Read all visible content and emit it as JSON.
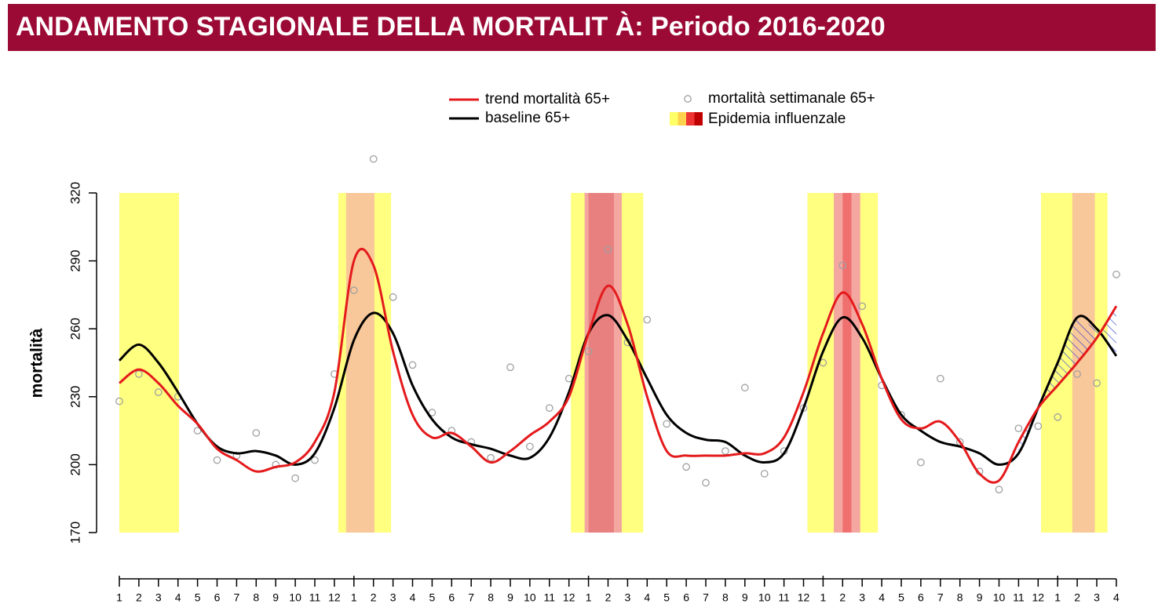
{
  "chart_data": {
    "type": "line",
    "title": "ANDAMENTO STAGIONALE DELLA MORTALIT À: Periodo 2016-2020",
    "ylabel": "mortalità",
    "categories": [
      "1",
      "2",
      "3",
      "4",
      "5",
      "6",
      "7",
      "8",
      "9",
      "10",
      "11",
      "12",
      "1",
      "2",
      "3",
      "4",
      "5",
      "6",
      "7",
      "8",
      "9",
      "10",
      "11",
      "12",
      "1",
      "2",
      "3",
      "4",
      "5",
      "6",
      "7",
      "8",
      "9",
      "10",
      "11",
      "12",
      "1",
      "2",
      "3",
      "4",
      "5",
      "6",
      "7",
      "8",
      "9",
      "10",
      "11",
      "12",
      "1",
      "2",
      "3",
      "4"
    ],
    "ylim": [
      170,
      320
    ],
    "yticks": [
      170,
      200,
      230,
      260,
      290,
      320
    ],
    "series": [
      {
        "name": "trend mortalità 65+",
        "color": "#e41a1c",
        "kind": "line",
        "values": [
          236,
          242,
          236,
          226,
          218,
          207,
          202,
          197,
          199,
          201,
          210,
          232,
          290,
          288,
          250,
          222,
          212,
          214,
          208,
          201,
          206,
          213,
          219,
          230,
          258,
          279,
          262,
          230,
          206,
          204,
          204,
          204,
          205,
          205,
          212,
          232,
          258,
          276,
          262,
          238,
          220,
          216,
          219,
          210,
          196,
          193,
          210,
          225,
          235,
          245,
          256,
          270
        ]
      },
      {
        "name": "baseline 65+",
        "color": "#000000",
        "kind": "line",
        "values": [
          246,
          253,
          245,
          232,
          218,
          208,
          205,
          206,
          204,
          200,
          205,
          225,
          255,
          267,
          258,
          235,
          220,
          212,
          209,
          207,
          204,
          203,
          212,
          232,
          258,
          266,
          255,
          238,
          222,
          214,
          211,
          210,
          204,
          201,
          205,
          225,
          250,
          265,
          256,
          238,
          222,
          215,
          210,
          208,
          205,
          200,
          205,
          225,
          245,
          265,
          260,
          248
        ]
      },
      {
        "name": "mortalità settimanale 65+",
        "color": "#a0a0a0",
        "kind": "points",
        "values": [
          228,
          240,
          232,
          230,
          215,
          202,
          204,
          214,
          200,
          194,
          202,
          240,
          277,
          335,
          274,
          244,
          223,
          215,
          210,
          203,
          243,
          208,
          225,
          238,
          250,
          295,
          254,
          264,
          218,
          199,
          192,
          206,
          234,
          196,
          206,
          225,
          245,
          288,
          270,
          235,
          222,
          201,
          238,
          210,
          197,
          189,
          216,
          217,
          221,
          240,
          236,
          284
        ]
      }
    ],
    "epidemic": {
      "name": "Epidemia influenzale",
      "periods": [
        {
          "from": 0,
          "to": 3.05,
          "color": "#ffff80"
        },
        {
          "from": 11.2,
          "to": 13.9,
          "color": "#ffff80"
        },
        {
          "from": 11.6,
          "to": 13.05,
          "color": "#f9c89a"
        },
        {
          "from": 23.1,
          "to": 26.8,
          "color": "#ffff80"
        },
        {
          "from": 23.8,
          "to": 25.7,
          "color": "#f4a6a0"
        },
        {
          "from": 24.0,
          "to": 25.3,
          "color": "#e88080"
        },
        {
          "from": 35.2,
          "to": 38.8,
          "color": "#ffff80"
        },
        {
          "from": 36.55,
          "to": 37.9,
          "color": "#f4a6a0"
        },
        {
          "from": 37.0,
          "to": 37.45,
          "color": "#f07070"
        },
        {
          "from": 47.15,
          "to": 50.55,
          "color": "#ffff80"
        },
        {
          "from": 48.75,
          "to": 49.9,
          "color": "#f9c89a"
        }
      ],
      "legend_colors": [
        "#ffff66",
        "#ffd24d",
        "#ee3333",
        "#c00000"
      ]
    }
  }
}
